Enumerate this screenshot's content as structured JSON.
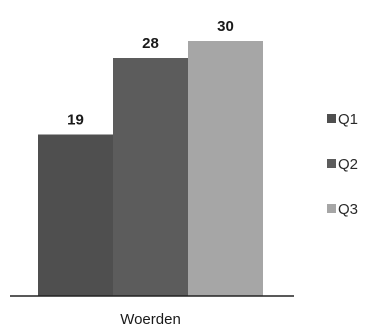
{
  "chart_data": {
    "type": "bar",
    "categories": [
      "Woerden"
    ],
    "series": [
      {
        "name": "Q1",
        "values": [
          19
        ],
        "color": "#4f4f4f"
      },
      {
        "name": "Q2",
        "values": [
          28
        ],
        "color": "#5c5c5c"
      },
      {
        "name": "Q3",
        "values": [
          30
        ],
        "color": "#a6a6a6"
      }
    ],
    "xlabel": "Woerden",
    "ylabel": "",
    "ylim": [
      0,
      30
    ],
    "grid": false,
    "legend_position": "right",
    "data_labels": true
  }
}
